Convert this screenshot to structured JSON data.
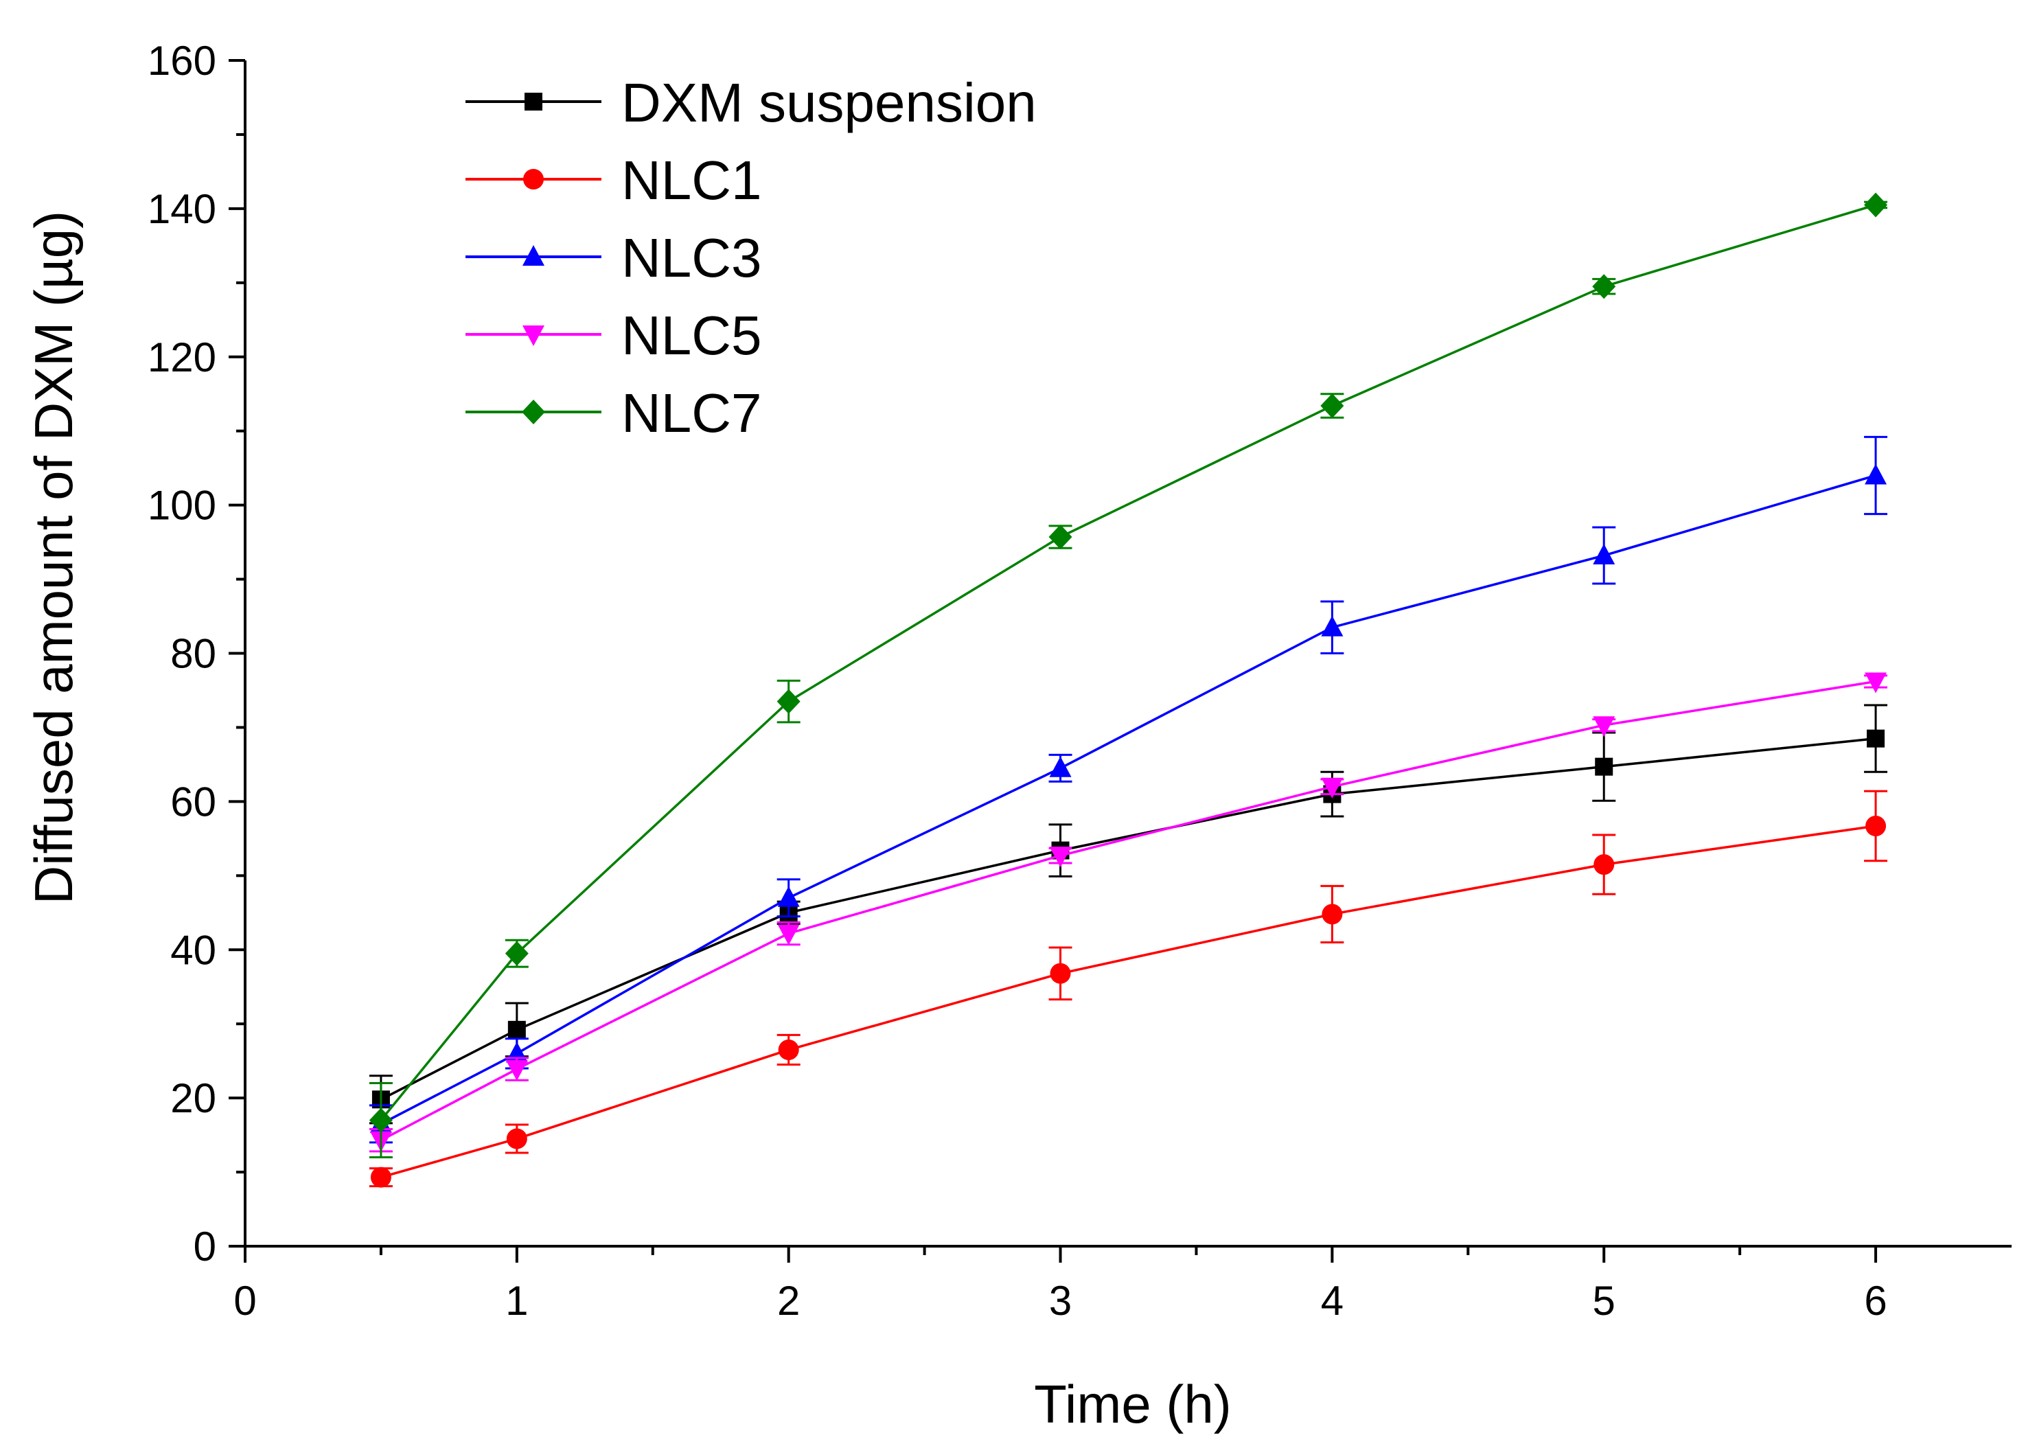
{
  "chart_data": {
    "type": "line",
    "title": "",
    "xlabel": "Time (h)",
    "ylabel": "Diffused amount of DXM (µg)",
    "xlim": [
      0,
      6.5
    ],
    "ylim": [
      0,
      160
    ],
    "xticks": [
      0,
      1,
      2,
      3,
      4,
      5,
      6
    ],
    "yticks": [
      0,
      20,
      40,
      60,
      80,
      100,
      120,
      140,
      160
    ],
    "x": [
      0.5,
      1,
      2,
      3,
      4,
      5,
      6
    ],
    "legend_position": "top-left",
    "series": [
      {
        "name": "DXM suspension",
        "color": "#000000",
        "marker": "square",
        "values": [
          19.8,
          29.2,
          45.0,
          53.4,
          61.0,
          64.7,
          68.5
        ],
        "errors": [
          3.2,
          3.6,
          1.5,
          3.5,
          3.0,
          4.6,
          4.5
        ]
      },
      {
        "name": "NLC1",
        "color": "#ff0000",
        "marker": "circle",
        "values": [
          9.3,
          14.5,
          26.5,
          36.8,
          44.8,
          51.5,
          56.7
        ],
        "errors": [
          1.2,
          1.9,
          2.0,
          3.5,
          3.8,
          4.0,
          4.7
        ]
      },
      {
        "name": "NLC3",
        "color": "#0000ff",
        "marker": "triangle-up",
        "values": [
          16.5,
          26.0,
          47.0,
          64.5,
          83.5,
          93.2,
          104.0
        ],
        "errors": [
          2.5,
          2.0,
          2.5,
          1.8,
          3.5,
          3.8,
          5.2
        ]
      },
      {
        "name": "NLC5",
        "color": "#ff00ff",
        "marker": "triangle-down",
        "values": [
          14.3,
          23.9,
          42.2,
          52.7,
          62.0,
          70.3,
          76.2
        ],
        "errors": [
          1.5,
          1.5,
          1.5,
          1.0,
          1.0,
          0.8,
          0.8
        ]
      },
      {
        "name": "NLC7",
        "color": "#008000",
        "marker": "diamond",
        "values": [
          17.0,
          39.5,
          73.5,
          95.7,
          113.4,
          129.5,
          140.5
        ],
        "errors": [
          5.0,
          1.8,
          2.8,
          1.5,
          1.6,
          1.0,
          0.4
        ]
      }
    ]
  }
}
